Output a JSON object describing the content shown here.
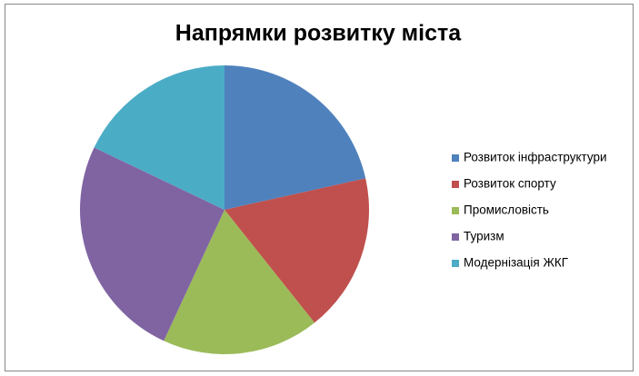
{
  "chart_data": {
    "type": "pie",
    "title": "Напрямки розвитку міста",
    "categories": [
      "Розвиток інфраструктури",
      "Розвиток спорту",
      "Промисловість",
      "Туризм",
      "Модернізація ЖКГ"
    ],
    "values": [
      21.5,
      17.8,
      17.6,
      25.2,
      17.9
    ],
    "colors": [
      "#4f81bd",
      "#c0504d",
      "#9bbb59",
      "#8064a2",
      "#4bacc6"
    ],
    "legend": "right"
  }
}
